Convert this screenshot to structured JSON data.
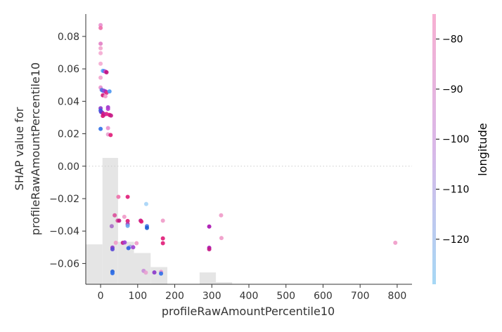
{
  "chart_data": {
    "type": "scatter",
    "title": "",
    "xlabel": "profileRawAmountPercentile10",
    "ylabel_lines": [
      "SHAP value for",
      "profileRawAmountPercentile10"
    ],
    "xlim": [
      -40,
      840
    ],
    "ylim": [
      -0.0728,
      0.0938
    ],
    "xticks": [
      0,
      100,
      200,
      300,
      400,
      500,
      600,
      700,
      800
    ],
    "yticks": [
      -0.06,
      -0.04,
      -0.02,
      0.0,
      0.02,
      0.04,
      0.06,
      0.08
    ],
    "ytick_labels": [
      "−0.06",
      "−0.04",
      "−0.02",
      "0.00",
      "0.02",
      "0.04",
      "0.06",
      "0.08"
    ],
    "zero_line": "dotted",
    "colorbar": {
      "label": "longitude",
      "range": [
        -129,
        -75
      ],
      "ticks": [
        -80,
        -90,
        -100,
        -110,
        -120
      ],
      "tick_labels": [
        "−80",
        "−90",
        "−100",
        "−110",
        "−120"
      ],
      "low_color": "#a6d8f5",
      "mid_color": "#d9b8e8",
      "high_color": "#f7b0d2"
    },
    "histogram": {
      "color": "#e5e5e5",
      "bins": [
        {
          "x0": -40,
          "x1": 5,
          "top": -0.0482
        },
        {
          "x0": 5,
          "x1": 47,
          "top": 0.0051
        },
        {
          "x0": 47,
          "x1": 90,
          "top": -0.0466
        },
        {
          "x0": 90,
          "x1": 135,
          "top": -0.0535
        },
        {
          "x0": 135,
          "x1": 180,
          "top": -0.0622
        },
        {
          "x0": 267,
          "x1": 311,
          "top": -0.0655
        },
        {
          "x0": 311,
          "x1": 355,
          "top": -0.0715
        }
      ]
    },
    "points": [
      {
        "x": 0,
        "y": 0.087,
        "c": "#e88fce"
      },
      {
        "x": 0,
        "y": 0.0852,
        "c": "#ee6eaa"
      },
      {
        "x": 0,
        "y": 0.0755,
        "c": "#e27ec4"
      },
      {
        "x": 0,
        "y": 0.0727,
        "c": "#f2a4cc"
      },
      {
        "x": 0,
        "y": 0.0697,
        "c": "#f4aad2"
      },
      {
        "x": 0,
        "y": 0.0632,
        "c": "#f4aad2"
      },
      {
        "x": 6,
        "y": 0.0588,
        "c": "#5aaaf6"
      },
      {
        "x": 10,
        "y": 0.0586,
        "c": "#4b76ee"
      },
      {
        "x": 13,
        "y": 0.0583,
        "c": "#d44ec4"
      },
      {
        "x": 16,
        "y": 0.0579,
        "c": "#c0127e"
      },
      {
        "x": 0,
        "y": 0.0546,
        "c": "#f3a3cd"
      },
      {
        "x": 0,
        "y": 0.0485,
        "c": "#e88fce"
      },
      {
        "x": 3,
        "y": 0.047,
        "c": "#6a6ddc"
      },
      {
        "x": 6,
        "y": 0.0466,
        "c": "#3d7be8"
      },
      {
        "x": 9,
        "y": 0.0465,
        "c": "#a040d4"
      },
      {
        "x": 11,
        "y": 0.0462,
        "c": "#8a55dd"
      },
      {
        "x": 14,
        "y": 0.046,
        "c": "#a22bbf"
      },
      {
        "x": 16,
        "y": 0.0452,
        "c": "#e32a88"
      },
      {
        "x": 24,
        "y": 0.0461,
        "c": "#4a96f2"
      },
      {
        "x": 6,
        "y": 0.0437,
        "c": "#d11575"
      },
      {
        "x": 13,
        "y": 0.0431,
        "c": "#f09ac8"
      },
      {
        "x": 0,
        "y": 0.0357,
        "c": "#8a35c9"
      },
      {
        "x": 0,
        "y": 0.0343,
        "c": "#2c5ee0"
      },
      {
        "x": 1,
        "y": 0.0335,
        "c": "#5a48d6"
      },
      {
        "x": 4,
        "y": 0.0331,
        "c": "#6e34cc"
      },
      {
        "x": 8,
        "y": 0.0323,
        "c": "#e01a77"
      },
      {
        "x": 12,
        "y": 0.032,
        "c": "#a22bbf"
      },
      {
        "x": 16,
        "y": 0.0322,
        "c": "#e32a88"
      },
      {
        "x": 20,
        "y": 0.0363,
        "c": "#9a34c9"
      },
      {
        "x": 20,
        "y": 0.0353,
        "c": "#b63ad0"
      },
      {
        "x": 24,
        "y": 0.0316,
        "c": "#e0137a"
      },
      {
        "x": 28,
        "y": 0.0312,
        "c": "#c41a86"
      },
      {
        "x": 6,
        "y": 0.031,
        "c": "#d70f72"
      },
      {
        "x": 0,
        "y": 0.023,
        "c": "#3070e8"
      },
      {
        "x": 20,
        "y": 0.0235,
        "c": "#e88fce"
      },
      {
        "x": 20,
        "y": 0.0196,
        "c": "#e8a0d0"
      },
      {
        "x": 27,
        "y": 0.0192,
        "c": "#e01a77"
      },
      {
        "x": 48,
        "y": -0.0189,
        "c": "#ee6eaa"
      },
      {
        "x": 73,
        "y": -0.0189,
        "c": "#e01a77"
      },
      {
        "x": 123,
        "y": -0.0233,
        "c": "#a6d4f7"
      },
      {
        "x": 38,
        "y": -0.0303,
        "c": "#d94f9a"
      },
      {
        "x": 64,
        "y": -0.0312,
        "c": "#f09ac8"
      },
      {
        "x": 46,
        "y": -0.0336,
        "c": "#d94f9a"
      },
      {
        "x": 50,
        "y": -0.0336,
        "c": "#c41a86"
      },
      {
        "x": 73,
        "y": -0.0338,
        "c": "#e01a77"
      },
      {
        "x": 108,
        "y": -0.0336,
        "c": "#c41a86"
      },
      {
        "x": 110,
        "y": -0.0341,
        "c": "#e01a77"
      },
      {
        "x": 168,
        "y": -0.0336,
        "c": "#f09ac8"
      },
      {
        "x": 73,
        "y": -0.0357,
        "c": "#aa3ab0"
      },
      {
        "x": 73,
        "y": -0.0368,
        "c": "#6aa6ee"
      },
      {
        "x": 30,
        "y": -0.037,
        "c": "#a86cc8"
      },
      {
        "x": 125,
        "y": -0.037,
        "c": "#4676e4"
      },
      {
        "x": 125,
        "y": -0.0381,
        "c": "#1b5ccf"
      },
      {
        "x": 293,
        "y": -0.0372,
        "c": "#a810b0"
      },
      {
        "x": 168,
        "y": -0.0445,
        "c": "#e01a77"
      },
      {
        "x": 168,
        "y": -0.0475,
        "c": "#e01a77"
      },
      {
        "x": 325,
        "y": -0.0303,
        "c": "#f09ac8"
      },
      {
        "x": 326,
        "y": -0.0443,
        "c": "#f09ac8"
      },
      {
        "x": 41,
        "y": -0.0472,
        "c": "#f09ac8"
      },
      {
        "x": 60,
        "y": -0.0472,
        "c": "#c41a86"
      },
      {
        "x": 65,
        "y": -0.047,
        "c": "#a040d4"
      },
      {
        "x": 80,
        "y": -0.0497,
        "c": "#a6a6e0"
      },
      {
        "x": 88,
        "y": -0.05,
        "c": "#a040d4"
      },
      {
        "x": 75,
        "y": -0.0505,
        "c": "#2c5ee0"
      },
      {
        "x": 97,
        "y": -0.0475,
        "c": "#f09ac8"
      },
      {
        "x": 32,
        "y": -0.0502,
        "c": "#8a35c9"
      },
      {
        "x": 32,
        "y": -0.0512,
        "c": "#5a48d6"
      },
      {
        "x": 293,
        "y": -0.0503,
        "c": "#a810b0"
      },
      {
        "x": 293,
        "y": -0.0512,
        "c": "#c41a86"
      },
      {
        "x": 32,
        "y": -0.065,
        "c": "#1f5cd6"
      },
      {
        "x": 32,
        "y": -0.066,
        "c": "#3070e8"
      },
      {
        "x": 116,
        "y": -0.0645,
        "c": "#c88cd8"
      },
      {
        "x": 122,
        "y": -0.0656,
        "c": "#e8a0d0"
      },
      {
        "x": 145,
        "y": -0.0655,
        "c": "#8a35c9"
      },
      {
        "x": 163,
        "y": -0.0652,
        "c": "#e88fce"
      },
      {
        "x": 163,
        "y": -0.0662,
        "c": "#3070e8"
      },
      {
        "x": 795,
        "y": -0.0472,
        "c": "#f09ac8"
      }
    ]
  }
}
